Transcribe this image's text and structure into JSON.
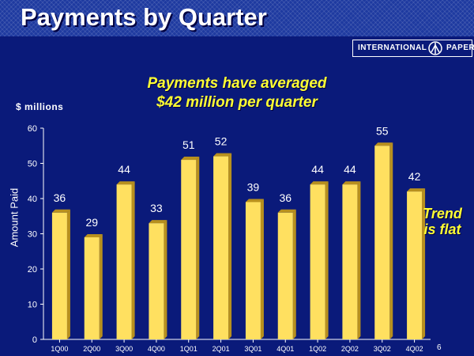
{
  "slide": {
    "title": "Payments by Quarter",
    "logo_left": "INTERNATIONAL",
    "logo_right": "PAPER",
    "subtitle_line1": "Payments have averaged",
    "subtitle_line2": "$42 million per quarter",
    "units": "$ millions",
    "note_line1": "Trend",
    "note_line2": "is flat",
    "page_number": "6"
  },
  "colors": {
    "background": "#0a1a7a",
    "bar_face": "#ffe060",
    "bar_side": "#b8901e",
    "accent_text": "#ffff33",
    "text": "#ffffff"
  },
  "chart_data": {
    "type": "bar",
    "title": "Payments by Quarter",
    "ylabel": "Amount Paid",
    "xlabel": "",
    "ylim": [
      0,
      60
    ],
    "yticks": [
      0,
      10,
      20,
      30,
      40,
      50,
      60
    ],
    "grid": false,
    "categories": [
      "1Q00",
      "2Q00",
      "3Q00",
      "4Q00",
      "1Q01",
      "2Q01",
      "3Q01",
      "4Q01",
      "1Q02",
      "2Q02",
      "3Q02",
      "4Q02"
    ],
    "values": [
      36,
      29,
      44,
      33,
      51,
      52,
      39,
      36,
      44,
      44,
      55,
      42
    ]
  }
}
